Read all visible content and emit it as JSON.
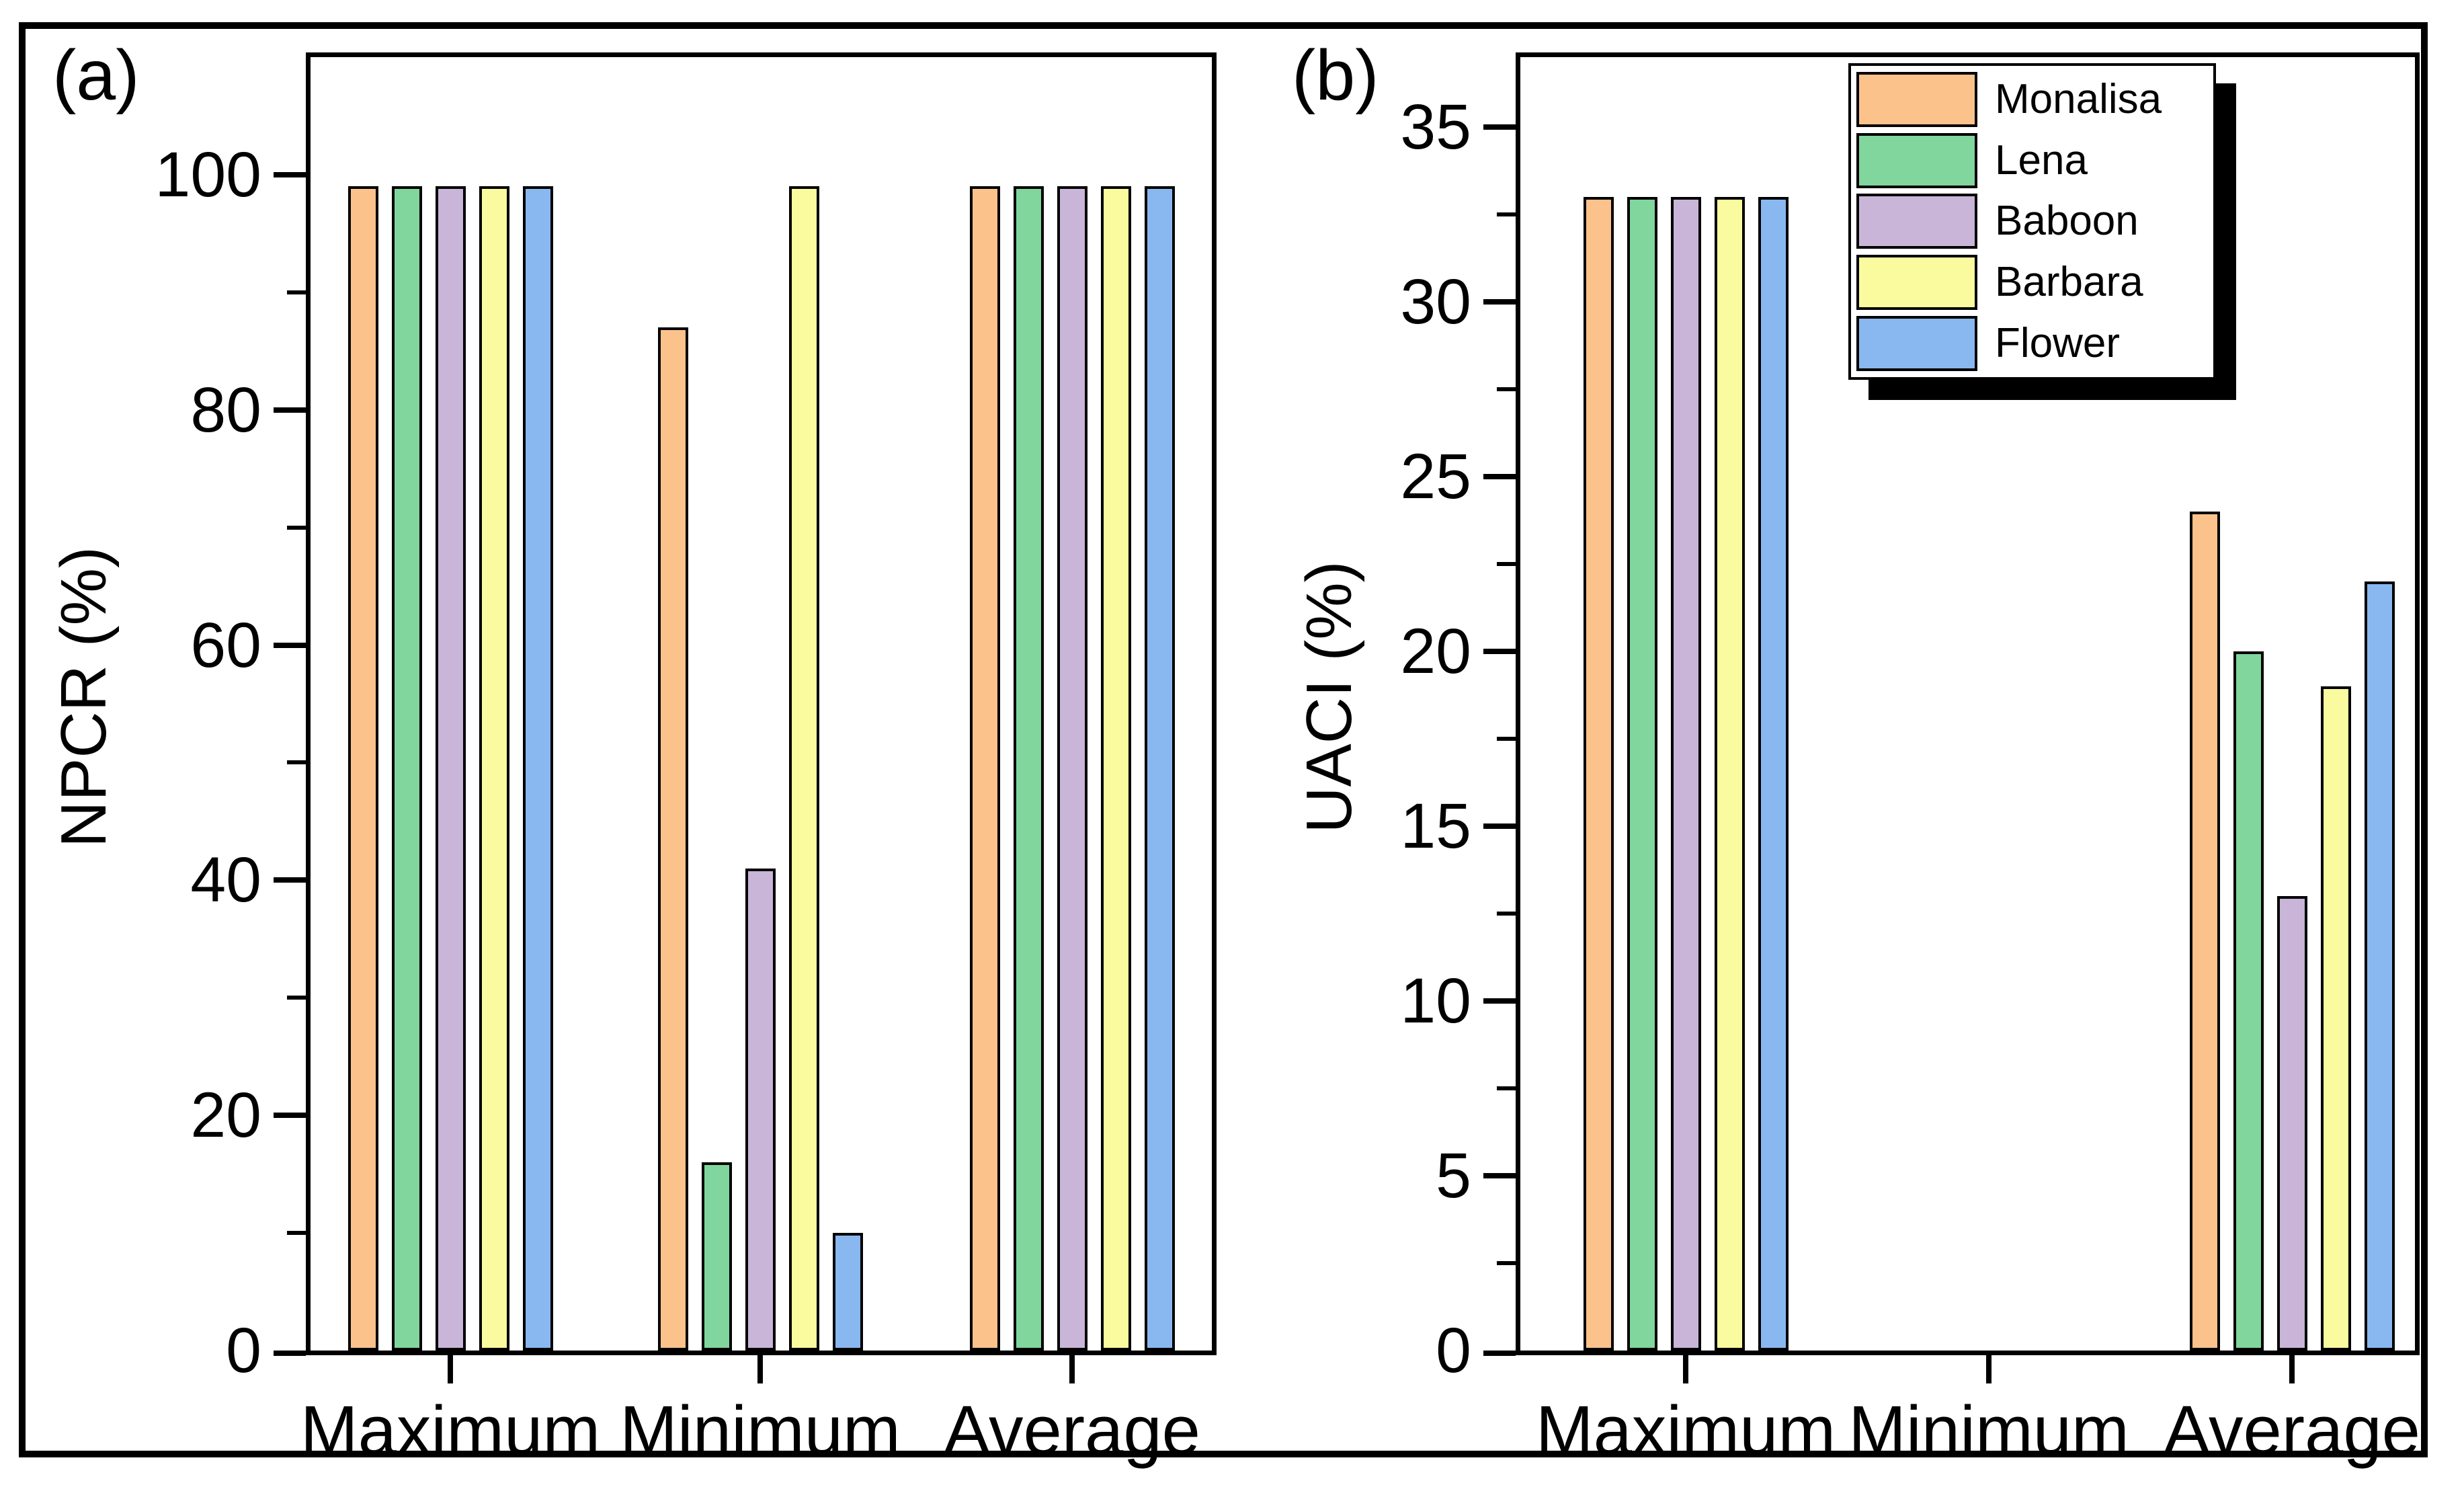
{
  "figure": {
    "background": "#ffffff",
    "frame_color": "#000000"
  },
  "legend": {
    "position": "top-right",
    "shadow": true,
    "entries": [
      {
        "label": "Monalisa",
        "color": "#FBC28C"
      },
      {
        "label": "Lena",
        "color": "#80D69C"
      },
      {
        "label": "Baboon",
        "color": "#C9B5D8"
      },
      {
        "label": "Barbara",
        "color": "#FAFA9E"
      },
      {
        "label": "Flower",
        "color": "#89B8F0"
      }
    ]
  },
  "chart_data": [
    {
      "type": "bar",
      "panel_label": "(a)",
      "title": "",
      "xlabel": "",
      "ylabel": "NPCR (%)",
      "categories": [
        "Maximum",
        "Minimum",
        "Average"
      ],
      "series": [
        {
          "name": "Monalisa",
          "color": "#FBC28C",
          "values": [
            99,
            87,
            99
          ]
        },
        {
          "name": "Lena",
          "color": "#80D69C",
          "values": [
            99,
            16,
            99
          ]
        },
        {
          "name": "Baboon",
          "color": "#C9B5D8",
          "values": [
            99,
            41,
            99
          ]
        },
        {
          "name": "Barbara",
          "color": "#FAFA9E",
          "values": [
            99,
            99,
            99
          ]
        },
        {
          "name": "Flower",
          "color": "#89B8F0",
          "values": [
            99,
            10,
            99
          ]
        }
      ],
      "y_ticks": [
        0,
        20,
        40,
        60,
        80,
        100
      ],
      "y_minor_ticks": [
        10,
        30,
        50,
        70,
        90
      ],
      "ylim": [
        0,
        110
      ],
      "grid": false
    },
    {
      "type": "bar",
      "panel_label": "(b)",
      "title": "",
      "xlabel": "",
      "ylabel": "UACI (%)",
      "categories": [
        "Maximum",
        "Minimum",
        "Average"
      ],
      "series": [
        {
          "name": "Monalisa",
          "color": "#FBC28C",
          "values": [
            33,
            0,
            24
          ]
        },
        {
          "name": "Lena",
          "color": "#80D69C",
          "values": [
            33,
            0,
            20
          ]
        },
        {
          "name": "Baboon",
          "color": "#C9B5D8",
          "values": [
            33,
            0,
            13
          ]
        },
        {
          "name": "Barbara",
          "color": "#FAFA9E",
          "values": [
            33,
            0,
            19
          ]
        },
        {
          "name": "Flower",
          "color": "#89B8F0",
          "values": [
            33,
            0,
            22
          ]
        }
      ],
      "y_ticks": [
        0,
        5,
        10,
        15,
        20,
        25,
        30,
        35
      ],
      "y_minor_ticks": [
        2.5,
        7.5,
        12.5,
        17.5,
        22.5,
        27.5,
        32.5
      ],
      "ylim": [
        0,
        37
      ],
      "grid": false
    }
  ]
}
